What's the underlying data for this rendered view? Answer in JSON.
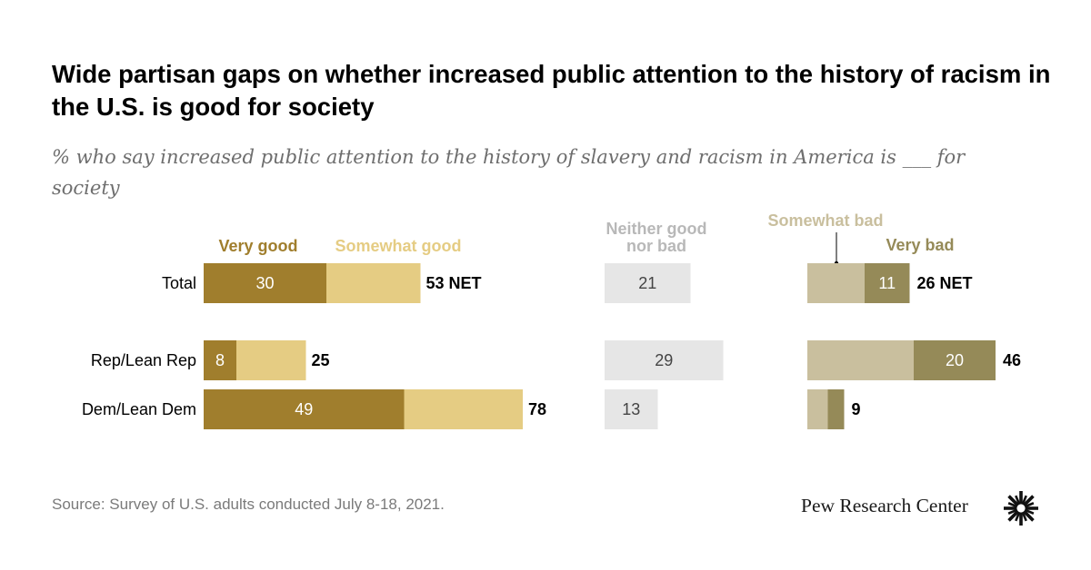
{
  "title": "Wide partisan gaps on whether increased public attention to the history of racism in the U.S. is good for society",
  "subtitle": "% who say increased public attention to the history of slavery and racism in America is ___ for society",
  "source": "Source: Survey of U.S. adults conducted July 8-18, 2021.",
  "brand": "Pew Research Center",
  "logo_icon": "pew-sunburst-logo-icon",
  "colors": {
    "very_good": "#a07e2d",
    "somewhat_good": "#e5cc83",
    "neither": "#e6e6e6",
    "somewhat_bad": "#c9bf9e",
    "very_bad": "#958a58"
  },
  "chart_data": {
    "type": "bar",
    "orientation": "horizontal-stacked",
    "categories": [
      "Total",
      "Rep/Lean Rep",
      "Dem/Lean Dem"
    ],
    "legend": {
      "very_good": "Very good",
      "somewhat_good": "Somewhat good",
      "neither": "Neither good nor bad",
      "somewhat_bad": "Somewhat bad",
      "very_bad": "Very bad"
    },
    "series": [
      {
        "key": "very_good",
        "name": "Very good",
        "values": [
          30,
          8,
          49
        ],
        "labels": [
          "30",
          "8",
          "49"
        ]
      },
      {
        "key": "somewhat_good",
        "name": "Somewhat good",
        "values": [
          23,
          17,
          29
        ],
        "labels": [
          "",
          "",
          ""
        ]
      },
      {
        "key": "neither",
        "name": "Neither good nor bad",
        "values": [
          21,
          29,
          13
        ],
        "labels": [
          "21",
          "29",
          "13"
        ]
      },
      {
        "key": "somewhat_bad",
        "name": "Somewhat bad",
        "values": [
          14,
          26,
          5
        ],
        "labels": [
          "",
          "",
          ""
        ]
      },
      {
        "key": "very_bad",
        "name": "Very bad",
        "values": [
          11,
          20,
          4
        ],
        "labels": [
          "11",
          "20",
          ""
        ]
      }
    ],
    "net_good_labels": [
      "53 NET",
      "25",
      "78"
    ],
    "net_bad_labels": [
      "26 NET",
      "46",
      "9"
    ]
  }
}
